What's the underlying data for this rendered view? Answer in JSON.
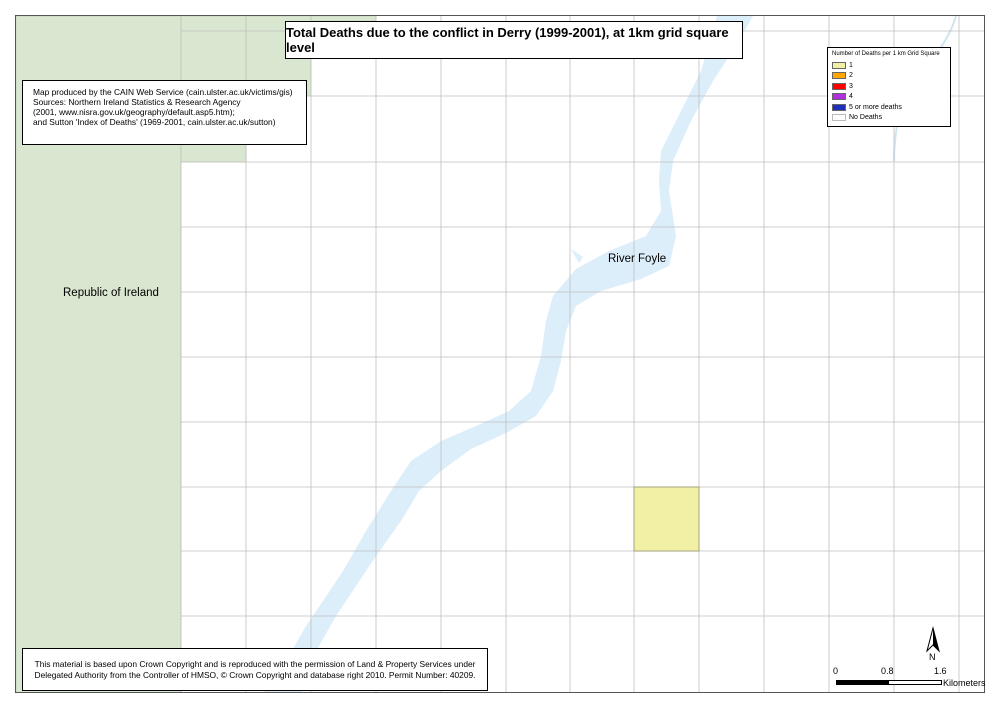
{
  "map": {
    "title": "Total Deaths due to the conflict in Derry (1999-2001), at 1km grid square level",
    "credits": [
      "Map produced by the CAIN Web Service (cain.ulster.ac.uk/victims/gis)",
      "Sources: Northern Ireland Statistics & Research Agency",
      "(2001, www.nisra.gov.uk/geography/default.asp5.htm);",
      "and Sutton 'Index of Deaths' (1969-2001, cain.ulster.ac.uk/sutton)"
    ],
    "labels": {
      "republic": "Republic of Ireland",
      "river": "River Foyle"
    },
    "copyright": "This material is based upon Crown Copyright and is reproduced with the permission of Land & Property Services under Delegated Authority from the Controller of HMSO, © Crown Copyright and database right 2010. Permit Number: 40209.",
    "colors": {
      "republic_fill": "#d9e6d0",
      "river_fill": "#dceefa",
      "grid_line": "#bfbfbf",
      "one_death": "#f1f0a4"
    },
    "legend": {
      "title": "Number of Deaths per 1 km Grid Square",
      "items": [
        {
          "label": "1",
          "color": "#f1f0a4"
        },
        {
          "label": "2",
          "color": "#ffa500"
        },
        {
          "label": "3",
          "color": "#ff0000"
        },
        {
          "label": "4",
          "color": "#b030e0"
        },
        {
          "label": "5 or more deaths",
          "color": "#1f2fb8"
        },
        {
          "label": "No Deaths",
          "color": "#ffffff"
        }
      ]
    },
    "north_arrow": "N",
    "scale": {
      "ticks": [
        "0",
        "0.8",
        "1.6"
      ],
      "unit": "Kilometers"
    }
  }
}
